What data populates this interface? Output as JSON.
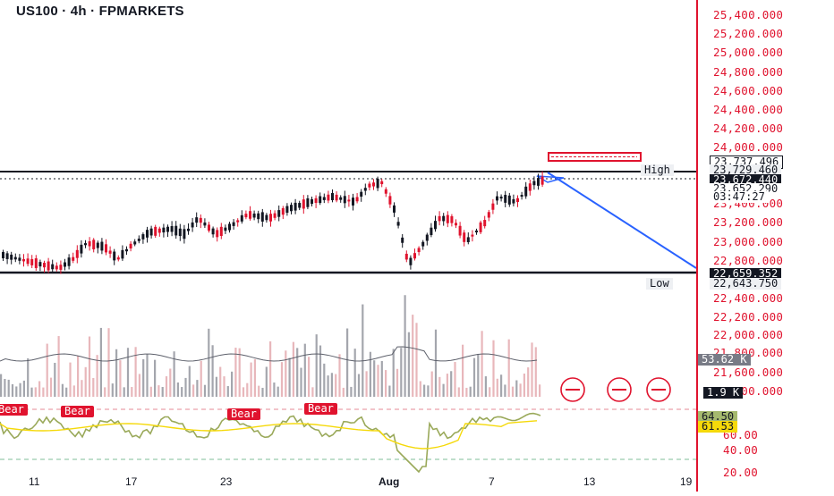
{
  "header": {
    "title": "US100 · 4h · FPMARKETS"
  },
  "price_axis": {
    "ticks": [
      "25,400.000",
      "25,200.000",
      "25,000.000",
      "24,800.000",
      "24,600.000",
      "24,400.000",
      "24,200.000",
      "24,000.000",
      "23,400.000",
      "23,200.000",
      "23,000.000",
      "22,800.000",
      "22,400.000",
      "22,200.000",
      "22,000.000",
      "21,800.000",
      "21,600.000",
      "21,400.000",
      "60.00",
      "40.00",
      "20.00"
    ],
    "tags": {
      "price_a": "23,737.496",
      "high_value": "23,729.460",
      "last_price": "23,672.440",
      "price_b": "23,652.290",
      "countdown": "03:47:27",
      "low_line_price": "22,659.352",
      "low_value": "22,643.750",
      "vol_ma": "53.62 K",
      "volume": "1.9 K",
      "rsi": "64.50",
      "rsi_ma": "61.53"
    },
    "tag_colors": {
      "dark": "#131722",
      "gray": "#787b86",
      "green": "#a5b96e",
      "yellow": "#f5d90a"
    }
  },
  "levels": {
    "high_label": "High",
    "low_label": "Low"
  },
  "time_axis": {
    "labels": [
      "11",
      "17",
      "23",
      "Aug",
      "7",
      "13",
      "19"
    ]
  },
  "signals": [
    "Bear",
    "Bear",
    "Bear",
    "Bear"
  ],
  "colors": {
    "accent_red": "#e0132e",
    "trend_blue": "#2962ff",
    "bull": "#131722",
    "bear": "#e0132e"
  }
}
